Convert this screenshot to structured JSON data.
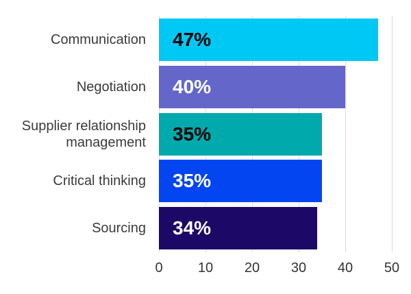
{
  "chart_data": {
    "type": "bar",
    "orientation": "horizontal",
    "title": "",
    "xlabel": "",
    "ylabel": "",
    "categories": [
      "Communication",
      "Negotiation",
      "Supplier relationship management",
      "Critical thinking",
      "Sourcing"
    ],
    "values": [
      47,
      40,
      35,
      35,
      34
    ],
    "value_labels": [
      "47%",
      "40%",
      "35%",
      "35%",
      "34%"
    ],
    "bar_colors": [
      "#00C8F5",
      "#6467C9",
      "#00A9AB",
      "#0345F0",
      "#1C0866"
    ],
    "value_label_colors": [
      "#000000",
      "#ffffff",
      "#000000",
      "#ffffff",
      "#ffffff"
    ],
    "xlim": [
      0,
      50
    ],
    "xticks": [
      "0",
      "10",
      "20",
      "30",
      "40",
      "50"
    ],
    "grid": true,
    "legend": false
  },
  "style": {
    "background_color": "#ffffff",
    "gridline_color": "#dcdcdc",
    "category_label_color": "#3a3a3a",
    "tick_label_color": "#333333"
  }
}
